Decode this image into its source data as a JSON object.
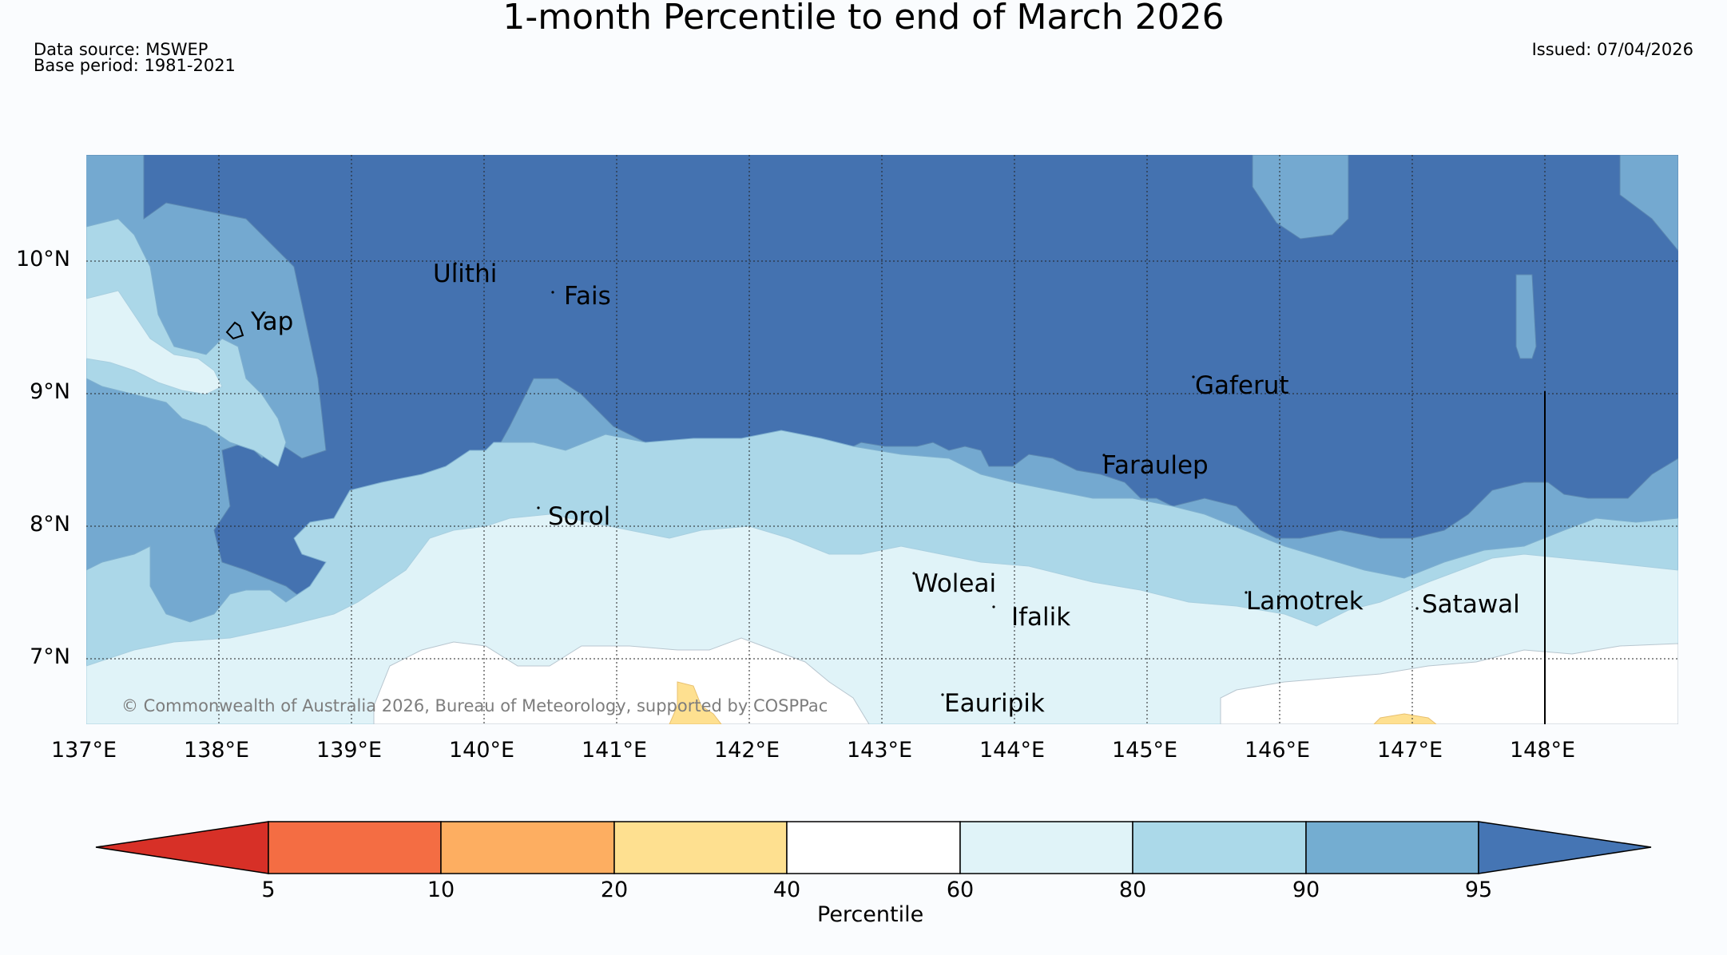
{
  "header": {
    "title": "1-month Percentile to end of March 2026",
    "data_source": "Data source: MSWEP",
    "base_period": "Base period: 1981-2021",
    "issued": "Issued: 07/04/2026"
  },
  "map": {
    "lat_labels": [
      "10°N",
      "9°N",
      "8°N",
      "7°N"
    ],
    "lon_labels": [
      "137°E",
      "138°E",
      "139°E",
      "140°E",
      "141°E",
      "142°E",
      "143°E",
      "144°E",
      "145°E",
      "146°E",
      "147°E",
      "148°E"
    ],
    "places": [
      "Yap",
      "Ulithi",
      "Fais",
      "Gaferut",
      "Faraulep",
      "Sorol",
      "Woleai",
      "Ifalik",
      "Lamotrek",
      "Satawal",
      "Eauripik"
    ],
    "copyright": "© Commonwealth of Australia 2026, Bureau of Meteorology, supported by COSPPac"
  },
  "colorbar": {
    "ticks": [
      "5",
      "10",
      "20",
      "40",
      "60",
      "80",
      "90",
      "95"
    ],
    "label": "Percentile",
    "colors": {
      "below_5": "#d73027",
      "5_10": "#f46d43",
      "10_20": "#fdae61",
      "20_40": "#fee090",
      "40_60": "#ffffff",
      "60_80": "#e0f3f8",
      "80_90": "#abd9e9",
      "90_95": "#74add1",
      "above_95": "#4575b4"
    }
  }
}
